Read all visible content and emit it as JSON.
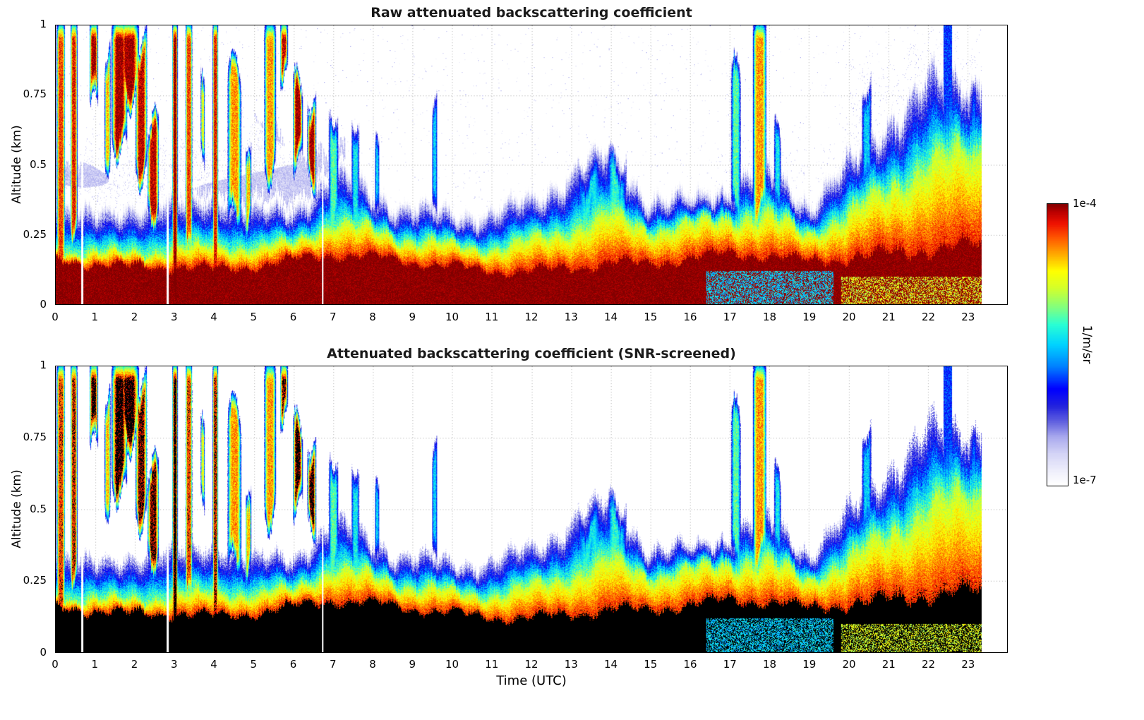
{
  "figure": {
    "background": "#ffffff",
    "x_axis_label": "Time (UTC)",
    "y_axis_label": "Altitude (km)",
    "x_tick_labels": [
      "0",
      "1",
      "2",
      "3",
      "4",
      "5",
      "6",
      "7",
      "8",
      "9",
      "10",
      "11",
      "12",
      "13",
      "14",
      "15",
      "16",
      "17",
      "18",
      "19",
      "20",
      "21",
      "22",
      "23"
    ],
    "y_tick_labels": [
      "0",
      "0.25",
      "0.5",
      "0.75",
      "1"
    ],
    "y_tick_values": [
      0,
      0.25,
      0.5,
      0.75,
      1
    ],
    "colorbar": {
      "top_tick_label": "1e-4",
      "bottom_tick_label": "1e-7",
      "units_label": "1/m/sr",
      "log10_min": -7,
      "log10_max": -4,
      "stops": [
        {
          "p": 0.0,
          "c": "#ffffff"
        },
        {
          "p": 0.05,
          "c": "#eeeefb"
        },
        {
          "p": 0.11,
          "c": "#d4d4f6"
        },
        {
          "p": 0.17,
          "c": "#a9a9ee"
        },
        {
          "p": 0.22,
          "c": "#6666e0"
        },
        {
          "p": 0.28,
          "c": "#2222dd"
        },
        {
          "p": 0.34,
          "c": "#0000ff"
        },
        {
          "p": 0.42,
          "c": "#0080ff"
        },
        {
          "p": 0.5,
          "c": "#00d4ff"
        },
        {
          "p": 0.57,
          "c": "#2affd4"
        },
        {
          "p": 0.63,
          "c": "#80ff80"
        },
        {
          "p": 0.7,
          "c": "#d4ff2a"
        },
        {
          "p": 0.76,
          "c": "#ffff00"
        },
        {
          "p": 0.82,
          "c": "#ffaa00"
        },
        {
          "p": 0.88,
          "c": "#ff5500"
        },
        {
          "p": 0.93,
          "c": "#ee1100"
        },
        {
          "p": 0.97,
          "c": "#bb0000"
        },
        {
          "p": 1.0,
          "c": "#800000"
        }
      ]
    }
  },
  "chart_data": [
    {
      "type": "heatmap",
      "id": "raw",
      "title": "Raw attenuated backscattering coefficient",
      "xlabel": "Time (UTC)",
      "ylabel": "Altitude (km)",
      "x_range_hours": [
        0,
        24
      ],
      "y_range_km": [
        0,
        1
      ],
      "x_ticks": [
        0,
        1,
        2,
        3,
        4,
        5,
        6,
        7,
        8,
        9,
        10,
        11,
        12,
        13,
        14,
        15,
        16,
        17,
        18,
        19,
        20,
        21,
        22,
        23
      ],
      "y_ticks": [
        0,
        0.25,
        0.5,
        0.75,
        1
      ],
      "value_units": "1/m/sr",
      "value_scale_log10": [
        -7,
        -4
      ],
      "grid": "dotted",
      "legend_position": "right-colorbar",
      "structure": {
        "data_end_hour": 23.35,
        "aerosol_layer_top_km": [
          0.38,
          0.3,
          0.33,
          0.3,
          0.33,
          0.28,
          0.32,
          0.45,
          0.42,
          0.35,
          0.33,
          0.3,
          0.33,
          0.4,
          0.46,
          0.33,
          0.35,
          0.45,
          0.5,
          0.38,
          0.48,
          0.62,
          0.68,
          0.72,
          0.7
        ],
        "red_zone_top_km": [
          0.2,
          0.2,
          0.2,
          0.2,
          0.2,
          0.18,
          0.2,
          0.27,
          0.26,
          0.24,
          0.23,
          0.22,
          0.24,
          0.26,
          0.3,
          0.24,
          0.26,
          0.3,
          0.32,
          0.28,
          0.35,
          0.45,
          0.5,
          0.52,
          0.5
        ],
        "saturated_surface_top_km": [
          0.15,
          0.15,
          0.15,
          0.16,
          0.14,
          0.14,
          0.15,
          0.16,
          0.15,
          0.14,
          0.14,
          0.13,
          0.14,
          0.15,
          0.16,
          0.14,
          0.15,
          0.16,
          0.16,
          0.15,
          0.18,
          0.21,
          0.23,
          0.23,
          0.21
        ],
        "cloud_events": [
          {
            "t": 0.12,
            "w": 0.22,
            "base": 0.0,
            "top": 1.0,
            "lv": -4.3
          },
          {
            "t": 0.45,
            "w": 0.18,
            "base": 0.25,
            "top": 1.0,
            "lv": -4.2
          },
          {
            "t": 0.95,
            "w": 0.22,
            "base": 0.72,
            "top": 1.0,
            "lv": -4.0
          },
          {
            "t": 1.3,
            "w": 0.15,
            "base": 0.5,
            "top": 0.9,
            "lv": -4.6
          },
          {
            "t": 1.6,
            "w": 0.4,
            "base": 0.55,
            "top": 1.0,
            "lv": -4.0
          },
          {
            "t": 1.85,
            "w": 0.5,
            "base": 0.72,
            "top": 1.0,
            "lv": -4.0
          },
          {
            "t": 2.15,
            "w": 0.3,
            "base": 0.45,
            "top": 0.95,
            "lv": -4.1
          },
          {
            "t": 2.45,
            "w": 0.3,
            "base": 0.3,
            "top": 0.65,
            "lv": -4.1
          },
          {
            "t": 3.0,
            "w": 0.14,
            "base": 0.0,
            "top": 1.0,
            "lv": -4.0
          },
          {
            "t": 3.35,
            "w": 0.18,
            "base": 0.15,
            "top": 1.0,
            "lv": -4.3
          },
          {
            "t": 3.7,
            "w": 0.1,
            "base": 0.5,
            "top": 0.8,
            "lv": -4.8
          },
          {
            "t": 4.02,
            "w": 0.14,
            "base": 0.0,
            "top": 1.0,
            "lv": -4.2
          },
          {
            "t": 4.5,
            "w": 0.35,
            "base": 0.3,
            "top": 0.85,
            "lv": -4.5
          },
          {
            "t": 4.85,
            "w": 0.15,
            "base": 0.25,
            "top": 0.6,
            "lv": -4.6
          },
          {
            "t": 5.4,
            "w": 0.3,
            "base": 0.45,
            "top": 1.0,
            "lv": -4.5
          },
          {
            "t": 5.75,
            "w": 0.2,
            "base": 0.8,
            "top": 1.0,
            "lv": -4.1
          },
          {
            "t": 6.1,
            "w": 0.25,
            "base": 0.5,
            "top": 0.8,
            "lv": -4.0
          },
          {
            "t": 6.45,
            "w": 0.22,
            "base": 0.42,
            "top": 0.75,
            "lv": -4.0
          },
          {
            "t": 7.0,
            "w": 0.25,
            "base": 0.25,
            "top": 0.7,
            "lv": -5.2
          },
          {
            "t": 7.55,
            "w": 0.2,
            "base": 0.25,
            "top": 0.68,
            "lv": -5.4
          },
          {
            "t": 8.1,
            "w": 0.12,
            "base": 0.28,
            "top": 0.55,
            "lv": -5.5
          },
          {
            "t": 9.55,
            "w": 0.14,
            "base": 0.3,
            "top": 0.72,
            "lv": -5.5
          },
          {
            "t": 13.45,
            "w": 0.6,
            "base": 0.28,
            "top": 0.48,
            "lv": -5.4
          },
          {
            "t": 14.15,
            "w": 0.5,
            "base": 0.3,
            "top": 0.52,
            "lv": -5.3
          },
          {
            "t": 17.15,
            "w": 0.25,
            "base": 0.3,
            "top": 0.85,
            "lv": -5.2
          },
          {
            "t": 17.75,
            "w": 0.35,
            "base": 0.3,
            "top": 1.0,
            "lv": -4.5
          },
          {
            "t": 18.2,
            "w": 0.18,
            "base": 0.3,
            "top": 0.62,
            "lv": -5.4
          },
          {
            "t": 20.45,
            "w": 0.25,
            "base": 0.4,
            "top": 0.8,
            "lv": -5.5
          },
          {
            "t": 22.5,
            "w": 0.22,
            "base": 0.55,
            "top": 1.0,
            "lv": -5.9,
            "flat": true
          },
          {
            "t": 23.15,
            "w": 0.14,
            "base": 0.55,
            "top": 0.75,
            "lv": -5.8
          }
        ],
        "haze_regions": [
          {
            "t0": 0.0,
            "t1": 7.3,
            "top": 0.55,
            "density": 0.6,
            "blob": true
          },
          {
            "t0": 7.3,
            "t1": 16.5,
            "top": 0.38,
            "density": 0.12,
            "blob": false
          },
          {
            "t0": 16.5,
            "t1": 20.0,
            "top": 0.6,
            "density": 0.2,
            "blob": false
          },
          {
            "t0": 20.0,
            "t1": 23.35,
            "top": 0.85,
            "density": 0.3,
            "blob": false
          }
        ],
        "surface_anomalies": [
          {
            "t0": 16.4,
            "t1": 19.6,
            "z0": 0.0,
            "z1": 0.12,
            "lv": -5.5,
            "frac": 0.55
          },
          {
            "t0": 19.8,
            "t1": 23.35,
            "z0": 0.0,
            "z1": 0.1,
            "lv": -4.85,
            "frac": 0.45
          }
        ],
        "data_gaps": [
          {
            "t": 0.66,
            "w": 0.05
          },
          {
            "t": 2.82,
            "w": 0.06
          },
          {
            "t": 6.72,
            "w": 0.04
          }
        ]
      }
    },
    {
      "type": "heatmap",
      "id": "snr_screened",
      "title": "Attenuated backscattering coefficient (SNR-screened)",
      "xlabel": "Time (UTC)",
      "ylabel": "Altitude (km)",
      "x_range_hours": [
        0,
        24
      ],
      "y_range_km": [
        0,
        1
      ],
      "x_ticks": [
        0,
        1,
        2,
        3,
        4,
        5,
        6,
        7,
        8,
        9,
        10,
        11,
        12,
        13,
        14,
        15,
        16,
        17,
        18,
        19,
        20,
        21,
        22,
        23
      ],
      "y_ticks": [
        0,
        0.25,
        0.5,
        0.75,
        1
      ],
      "value_units": "1/m/sr",
      "value_scale_log10": [
        -7,
        -4
      ],
      "grid": "dotted",
      "field": "same_as_raw",
      "masking": {
        "black_above_log10": -4.15,
        "snr_cut_log10_at_surface": -6.8,
        "snr_cut_log10_slope_per_km": 0.4,
        "haze_and_speckles_removed": true
      }
    }
  ]
}
